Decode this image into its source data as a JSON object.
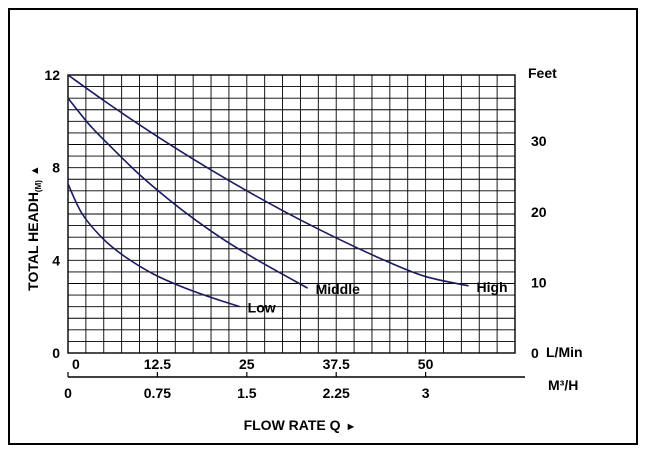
{
  "chart_data": {
    "type": "line",
    "ylabel": "TOTAL HEADH",
    "ylabel_unit": "(M)",
    "ylabel_arrow": "▲",
    "xlabel": "FLOW RATE Q",
    "xlabel_arrow": "►",
    "left_axis": {
      "ticks": [
        "0",
        "4",
        "8",
        "12"
      ],
      "ylim": [
        0,
        12
      ]
    },
    "right_axis": {
      "unit_label": "Feet",
      "ticks": [
        "0",
        "10",
        "20",
        "30"
      ]
    },
    "x_axis_lpm": {
      "unit_label": "L/Min",
      "ticks": [
        "0",
        "12.5",
        "25",
        "37.5",
        "50"
      ],
      "xlim": [
        0,
        62.5
      ]
    },
    "x_axis_m3h": {
      "unit_label": "M³/H",
      "ticks": [
        "0",
        "0.75",
        "1.5",
        "2.25",
        "3"
      ]
    },
    "grid": true,
    "series": [
      {
        "name": "Low",
        "x": [
          0,
          2,
          5,
          8,
          12,
          16,
          20,
          24
        ],
        "y": [
          7.3,
          6.0,
          4.9,
          4.15,
          3.4,
          2.85,
          2.4,
          2.0
        ]
      },
      {
        "name": "Middle",
        "x": [
          0,
          3,
          6,
          10,
          14,
          18,
          22,
          26,
          30,
          33.5
        ],
        "y": [
          11.0,
          9.85,
          8.9,
          7.7,
          6.65,
          5.7,
          4.85,
          4.1,
          3.4,
          2.8
        ]
      },
      {
        "name": "High",
        "x": [
          0,
          5,
          10,
          15,
          20,
          25,
          30,
          35,
          40,
          45,
          50,
          56
        ],
        "y": [
          12.0,
          10.9,
          9.85,
          8.85,
          7.9,
          7.0,
          6.15,
          5.35,
          4.6,
          3.9,
          3.3,
          2.9
        ]
      }
    ]
  }
}
